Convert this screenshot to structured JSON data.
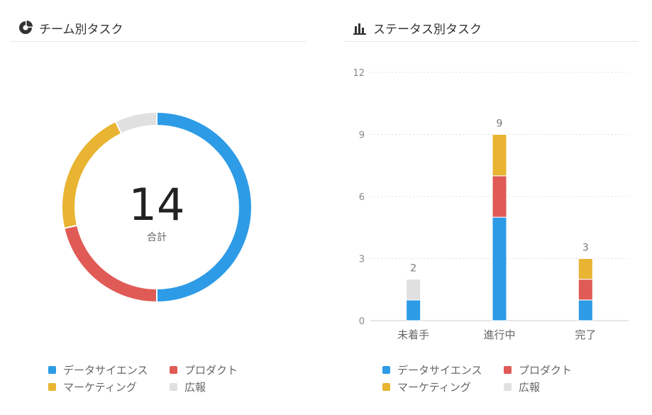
{
  "team_panel": {
    "title": "チーム別タスク",
    "icon": "pie-chart-icon",
    "total_value": "14",
    "total_label": "合計"
  },
  "status_panel": {
    "title": "ステータス別タスク",
    "icon": "bar-chart-icon"
  },
  "colors": {
    "data_science": "#2d9be6",
    "product": "#e05b56",
    "marketing": "#e8b431",
    "pr": "#e0e0e0"
  },
  "legend": [
    {
      "label": "データサイエンス",
      "color": "#2d9be6"
    },
    {
      "label": "プロダクト",
      "color": "#e05b56"
    },
    {
      "label": "マーケティング",
      "color": "#e8b431"
    },
    {
      "label": "広報",
      "color": "#e0e0e0"
    }
  ],
  "chart_data": [
    {
      "type": "pie",
      "donut": true,
      "center_text": "14",
      "center_label": "合計",
      "labels": [
        "データサイエンス",
        "プロダクト",
        "マーケティング",
        "広報"
      ],
      "values": [
        7,
        3,
        3,
        1
      ],
      "colors": [
        "#2d9be6",
        "#e05b56",
        "#e8b431",
        "#e0e0e0"
      ],
      "legend_position": "bottom"
    },
    {
      "type": "bar",
      "stacked": true,
      "categories": [
        "未着手",
        "進行中",
        "完了"
      ],
      "series": [
        {
          "name": "データサイエンス",
          "values": [
            1,
            5,
            1
          ],
          "color": "#2d9be6"
        },
        {
          "name": "プロダクト",
          "values": [
            0,
            2,
            1
          ],
          "color": "#e05b56"
        },
        {
          "name": "マーケティング",
          "values": [
            0,
            2,
            1
          ],
          "color": "#e8b431"
        },
        {
          "name": "広報",
          "values": [
            1,
            0,
            0
          ],
          "color": "#e0e0e0"
        }
      ],
      "totals": [
        2,
        9,
        3
      ],
      "ylim": [
        0,
        12
      ],
      "yticks": [
        0,
        3,
        6,
        9,
        12
      ],
      "grid": true,
      "legend_position": "bottom"
    }
  ]
}
